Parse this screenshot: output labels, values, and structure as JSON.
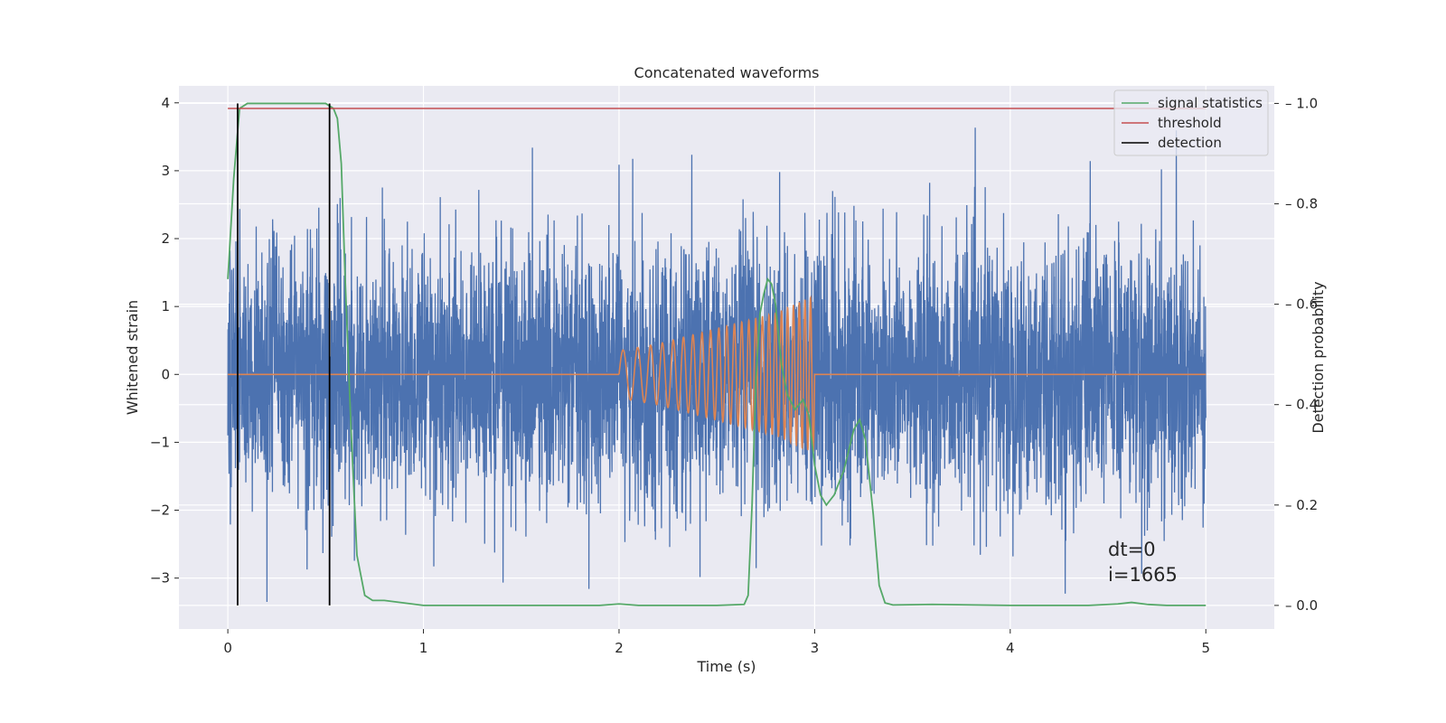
{
  "chart_data": {
    "type": "line",
    "title": "Concatenated waveforms",
    "xlabel": "Time (s)",
    "ylabel": "Whitened strain",
    "ylabel_right": "Detection probability",
    "xlim": [
      -0.25,
      5.35
    ],
    "ylim": [
      -3.75,
      4.25
    ],
    "ylim_right": [
      -0.047,
      1.035
    ],
    "xticks": [
      0,
      1,
      2,
      3,
      4,
      5
    ],
    "yticks": [
      -3,
      -2,
      -1,
      0,
      1,
      2,
      3,
      4
    ],
    "yticks_right": [
      0.0,
      0.2,
      0.4,
      0.6,
      0.8,
      1.0
    ],
    "xtick_labels": [
      "0",
      "1",
      "2",
      "3",
      "4",
      "5"
    ],
    "ytick_labels": [
      "−3",
      "−2",
      "−1",
      "0",
      "1",
      "2",
      "3",
      "4"
    ],
    "ytick_right_labels": [
      "0.0",
      "0.2",
      "0.4",
      "0.6",
      "0.8",
      "1.0"
    ],
    "grid": true,
    "legend_position": "top-right",
    "series": [
      {
        "name": "",
        "axis": "left",
        "kind": "noise",
        "color": "#4c72b0",
        "x_range": [
          0,
          5
        ],
        "description_values": {
          "std": 0.95,
          "min": -3.35,
          "max": 3.75
        }
      },
      {
        "name": "",
        "axis": "left",
        "kind": "chirp",
        "color": "#dd8452",
        "x": [
          0,
          2,
          2.0,
          2.2,
          2.4,
          2.6,
          2.8,
          2.95,
          3.0,
          3.0,
          5
        ],
        "amplitude_envelope": [
          0,
          0,
          0.35,
          0.45,
          0.6,
          0.75,
          0.9,
          1.1,
          1.15,
          0,
          0
        ]
      },
      {
        "name": "signal statistics",
        "axis": "right",
        "color": "#55a868",
        "x": [
          0.0,
          0.03,
          0.06,
          0.1,
          0.2,
          0.3,
          0.4,
          0.5,
          0.54,
          0.56,
          0.58,
          0.6,
          0.63,
          0.66,
          0.7,
          0.74,
          0.8,
          1.0,
          1.5,
          1.9,
          2.0,
          2.1,
          2.5,
          2.64,
          2.66,
          2.68,
          2.7,
          2.72,
          2.74,
          2.76,
          2.78,
          2.8,
          2.83,
          2.86,
          2.9,
          2.94,
          2.97,
          3.0,
          3.03,
          3.06,
          3.1,
          3.15,
          3.2,
          3.23,
          3.26,
          3.3,
          3.33,
          3.36,
          3.4,
          3.6,
          4.0,
          4.4,
          4.55,
          4.62,
          4.7,
          4.8,
          5.0
        ],
        "y": [
          0.65,
          0.85,
          0.99,
          1.0,
          1.0,
          1.0,
          1.0,
          1.0,
          0.99,
          0.97,
          0.88,
          0.65,
          0.35,
          0.1,
          0.02,
          0.01,
          0.01,
          0.0,
          0.0,
          0.0,
          0.003,
          0.0,
          0.0,
          0.002,
          0.02,
          0.2,
          0.45,
          0.58,
          0.62,
          0.65,
          0.64,
          0.6,
          0.48,
          0.42,
          0.39,
          0.41,
          0.38,
          0.28,
          0.22,
          0.2,
          0.22,
          0.27,
          0.35,
          0.37,
          0.33,
          0.18,
          0.04,
          0.005,
          0.001,
          0.002,
          0.0,
          0.0,
          0.003,
          0.006,
          0.002,
          0.0,
          0.0
        ]
      },
      {
        "name": "threshold",
        "axis": "right",
        "color": "#c44e52",
        "x": [
          0,
          5
        ],
        "y": [
          0.99,
          0.99
        ]
      },
      {
        "name": "detection",
        "axis": "right",
        "kind": "vlines",
        "color": "#000000",
        "x": [
          0.05,
          0.52
        ],
        "y": [
          0.0,
          1.0
        ]
      }
    ],
    "annotations": [
      {
        "text": "dt=0"
      },
      {
        "text": "i=1665"
      }
    ]
  }
}
